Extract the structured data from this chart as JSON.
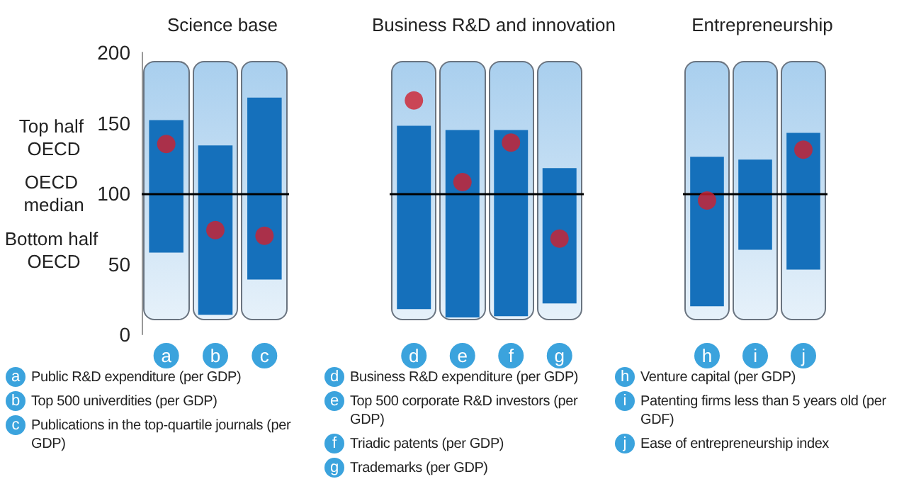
{
  "chart_data": [
    {
      "type": "bar",
      "title": "Science base",
      "categories": [
        "a",
        "b",
        "c"
      ],
      "ylim": [
        0,
        200
      ],
      "yticks": [
        0,
        50,
        100,
        150,
        200
      ],
      "ref_lines": [
        {
          "axis": "y",
          "value": 100,
          "label": "OECD median"
        }
      ],
      "series": [
        {
          "type": "bar",
          "color": "#1570bb",
          "base": [
            58,
            14,
            39
          ],
          "values": [
            94,
            120,
            129
          ]
        },
        {
          "type": "scatter",
          "color": "#d0202e",
          "marker": "circle",
          "x": [
            "a",
            "b",
            "c"
          ],
          "values": [
            135,
            74,
            70
          ]
        }
      ],
      "annotations": [
        "Top half OECD",
        "Bottom half OECD",
        "Public R&D expenditure (per GDP)",
        "Top 500 univerdities (per GDP)",
        "Publications in the top-quartile journals (per GDP)"
      ]
    },
    {
      "type": "bar",
      "title": "Business R&D and innovation",
      "categories": [
        "d",
        "e",
        "f",
        "g"
      ],
      "ylim": [
        0,
        200
      ],
      "yticks": [
        0,
        50,
        100,
        150,
        200
      ],
      "tick_labels": "x",
      "ref_lines": [
        {
          "axis": "y",
          "value": 100
        }
      ],
      "series": [
        {
          "type": "bar",
          "color": "#1570bb",
          "base": [
            18,
            12,
            13,
            22
          ],
          "values": [
            130,
            133,
            132,
            96
          ]
        },
        {
          "type": "scatter",
          "color": "#d0202e",
          "marker": "circle",
          "x": [
            "d",
            "e",
            "f",
            "g"
          ],
          "values": [
            166,
            108,
            136,
            68
          ]
        }
      ],
      "annotations": [
        "Business R&D expenditure (per GDP)",
        "Top 500 corporate R&D investors (per GDP)",
        "Triadic patents (per GDP)",
        "Trademarks (per GDP)"
      ]
    },
    {
      "type": "bar",
      "title": "Entrepreneurship",
      "categories": [
        "h",
        "i",
        "j"
      ],
      "ylim": [
        0,
        200
      ],
      "yticks": [
        0,
        50,
        100,
        150,
        200
      ],
      "tick_labels": "x",
      "ref_lines": [
        {
          "axis": "y",
          "value": 100
        }
      ],
      "series": [
        {
          "type": "bar",
          "color": "#1570bb",
          "base": [
            20,
            60,
            46
          ],
          "values": [
            106,
            64,
            97
          ]
        },
        {
          "type": "scatter",
          "color": "#d0202e",
          "marker": "circle",
          "x": [
            "h",
            "j"
          ],
          "values": [
            95,
            131
          ]
        }
      ],
      "annotations": [
        "Venture capital (per GDP)",
        "Patenting firms less than 5 years old (per GDF)",
        "Ease of entrepreneurship index"
      ]
    }
  ]
}
